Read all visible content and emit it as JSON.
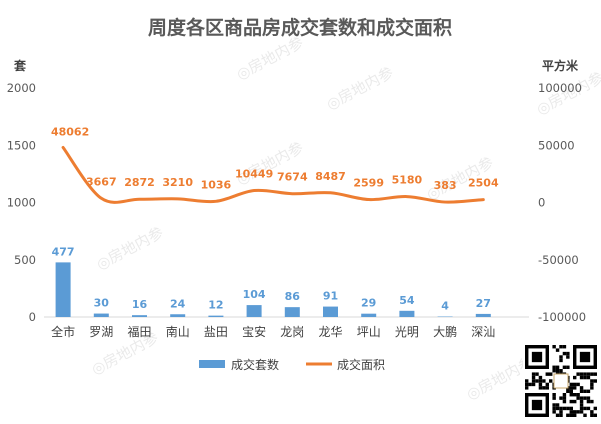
{
  "chart_data": {
    "type": "bar",
    "title": "周度各区商品房成交套数和成交面积",
    "categories": [
      "全市",
      "罗湖",
      "福田",
      "南山",
      "盐田",
      "宝安",
      "龙岗",
      "龙华",
      "坪山",
      "光明",
      "大鹏",
      "深汕"
    ],
    "series": [
      {
        "name": "成交套数",
        "type": "bar",
        "axis": "left",
        "color": "#5b9bd5",
        "values": [
          477,
          30,
          16,
          24,
          12,
          104,
          86,
          91,
          29,
          54,
          4,
          27
        ]
      },
      {
        "name": "成交面积",
        "type": "line",
        "axis": "right",
        "color": "#ed7d31",
        "values": [
          48062,
          3667,
          2872,
          3210,
          1036,
          10449,
          7674,
          8487,
          2599,
          5180,
          383,
          2504
        ]
      }
    ],
    "y_left": {
      "label": "套",
      "range": [
        0,
        2000
      ],
      "ticks": [
        0,
        500,
        1000,
        1500,
        2000
      ]
    },
    "y_right": {
      "label": "平方米",
      "range": [
        -100000,
        100000
      ],
      "ticks": [
        "-100000",
        "-50000",
        "0",
        "50000",
        "100000"
      ]
    },
    "grid": false,
    "legend_position": "bottom"
  },
  "watermark": "房地内参"
}
